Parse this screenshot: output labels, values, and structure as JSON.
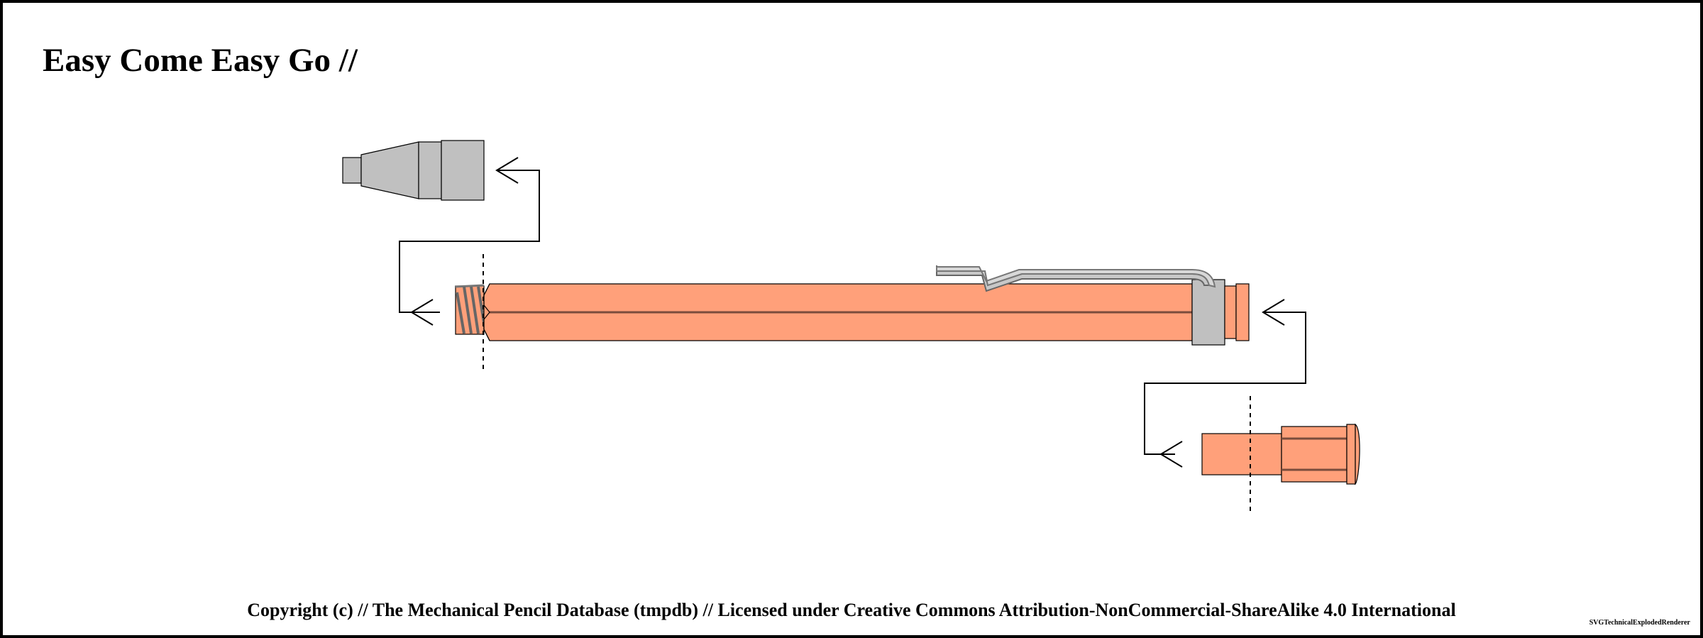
{
  "title": "Easy Come Easy Go //",
  "copyright": "Copyright (c) // The Mechanical Pencil Database (tmpdb) // Licensed under Creative Commons Attribution-NonCommercial-ShareAlike 4.0 International",
  "renderer": "SVGTechnicalExplodedRenderer",
  "colors": {
    "frame": "#000000",
    "body": "#ffa07a",
    "body_seam": "#8a5a48",
    "metal": "#c0c0c0",
    "metal_dark": "#888888",
    "thread": "#777777"
  },
  "parts": [
    {
      "id": "tip-cone",
      "icon": "tip-cone-icon"
    },
    {
      "id": "barrel",
      "icon": "barrel-icon"
    },
    {
      "id": "clip",
      "icon": "clip-icon"
    },
    {
      "id": "end-cap",
      "icon": "end-cap-icon"
    }
  ]
}
